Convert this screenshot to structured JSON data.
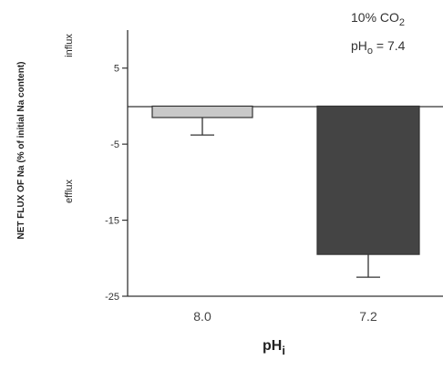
{
  "chart_data": {
    "type": "bar",
    "categories": [
      "8.0",
      "7.2"
    ],
    "values": [
      -1.5,
      -19.5
    ],
    "errors": [
      2.3,
      3.0
    ],
    "ylim": [
      -25,
      10
    ],
    "yticks": [
      5,
      -5,
      -15,
      -25
    ],
    "ytick_labels": [
      "5",
      "-5",
      "-15",
      "-25"
    ],
    "ylabel": "NET FLUX OF Na (% of initial Na content)",
    "influx_label": "influx",
    "efflux_label": "efflux",
    "xlabel_main": "pH",
    "xlabel_sub": "i",
    "annotation": {
      "line1_main": "10% CO",
      "line1_sub": "2",
      "line2_main": "pH",
      "line2_sub": "o",
      "line2_rest": " = 7.4"
    },
    "bar_colors": [
      "#c8c8c8",
      "#444444"
    ]
  }
}
